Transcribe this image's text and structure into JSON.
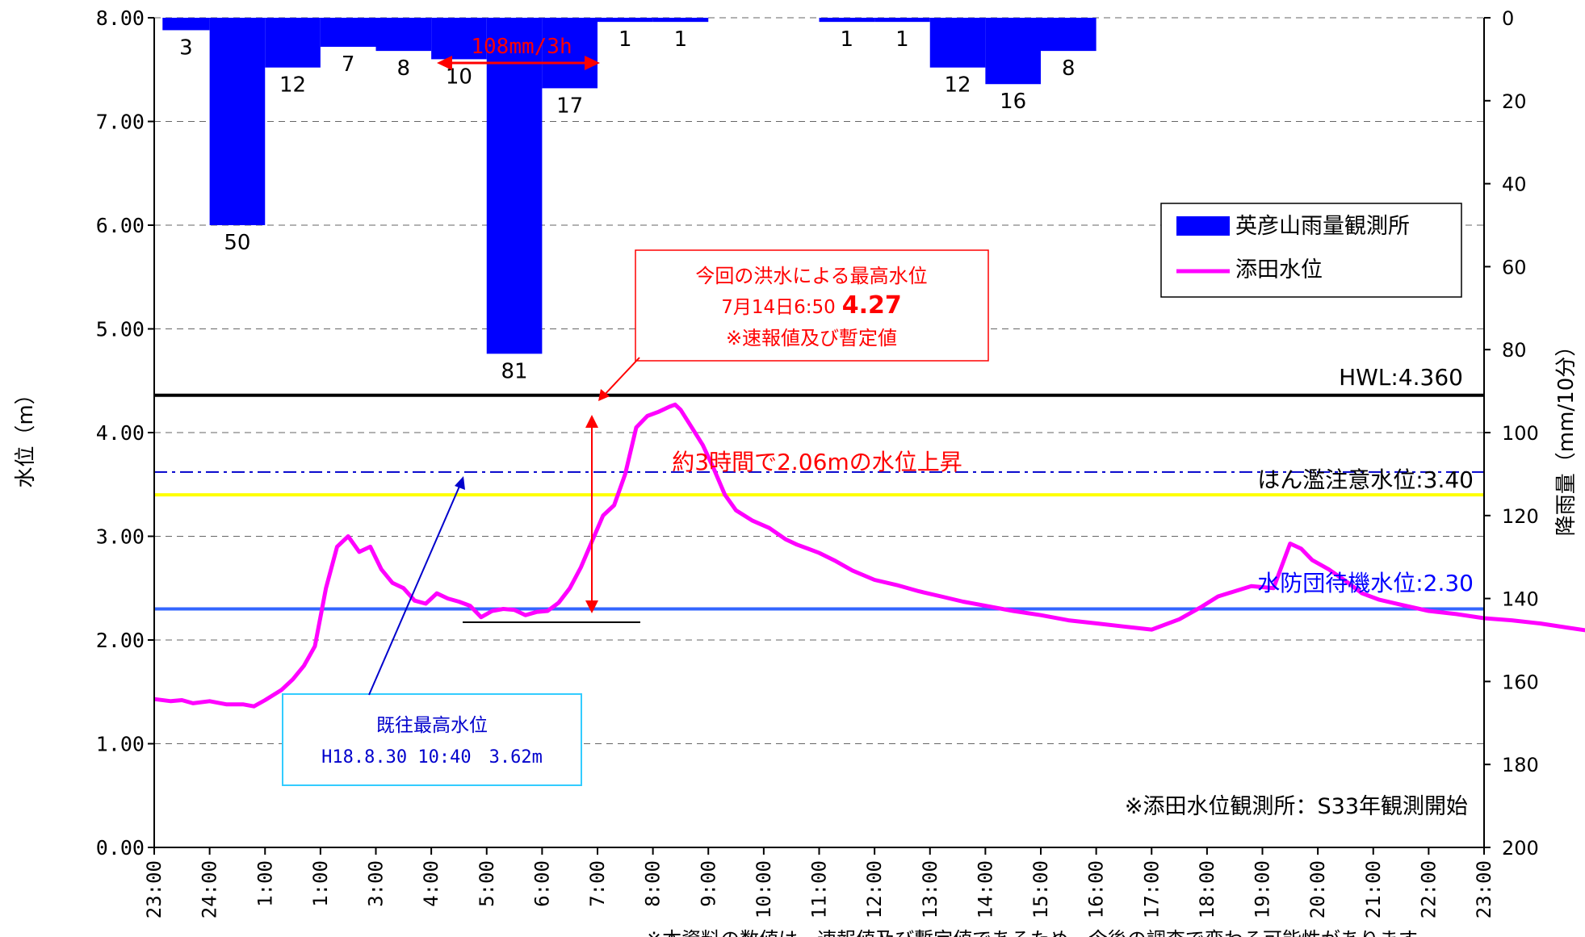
{
  "chart_data": {
    "type": "bar+line",
    "y_left": {
      "label": "水位（m）",
      "range": [
        0,
        8
      ],
      "ticks": [
        "0.00",
        "1.00",
        "2.00",
        "3.00",
        "4.00",
        "5.00",
        "6.00",
        "7.00",
        "8.00"
      ]
    },
    "y_right": {
      "label": "降雨量（mm/10分）",
      "range": [
        0,
        200
      ],
      "inverted": true,
      "ticks": [
        "0",
        "20",
        "40",
        "60",
        "80",
        "100",
        "120",
        "140",
        "160",
        "180",
        "200"
      ]
    },
    "x": {
      "range_hours": [
        0,
        24
      ],
      "tick_labels": [
        "23:00",
        "24:00",
        "1:00",
        "1:00",
        "3:00",
        "4:00",
        "5:00",
        "6:00",
        "7:00",
        "8:00",
        "9:00",
        "10:00",
        "11:00",
        "12:00",
        "13:00",
        "14:00",
        "15:00",
        "16:00",
        "17:00",
        "18:00",
        "19:00",
        "20:00",
        "21:00",
        "22:00",
        "23:00"
      ]
    },
    "rain_bars": {
      "name": "英彦山雨量観測所",
      "color": "#0000ff",
      "bars": [
        {
          "start": 0.15,
          "end": 1.0,
          "value": 3,
          "label": "3"
        },
        {
          "start": 1.0,
          "end": 2.0,
          "value": 50,
          "label": "50"
        },
        {
          "start": 2.0,
          "end": 3.0,
          "value": 12,
          "label": "12"
        },
        {
          "start": 3.0,
          "end": 4.0,
          "value": 7,
          "label": "7"
        },
        {
          "start": 4.0,
          "end": 5.0,
          "value": 8,
          "label": "8"
        },
        {
          "start": 5.0,
          "end": 6.0,
          "value": 10,
          "label": "10"
        },
        {
          "start": 6.0,
          "end": 7.0,
          "value": 81,
          "label": "81"
        },
        {
          "start": 7.0,
          "end": 8.0,
          "value": 17,
          "label": "17"
        },
        {
          "start": 8.0,
          "end": 9.0,
          "value": 1,
          "label": "1"
        },
        {
          "start": 9.0,
          "end": 10.0,
          "value": 1,
          "label": "1"
        },
        {
          "start": 12.0,
          "end": 13.0,
          "value": 1,
          "label": "1"
        },
        {
          "start": 13.0,
          "end": 14.0,
          "value": 1,
          "label": "1"
        },
        {
          "start": 14.0,
          "end": 15.0,
          "value": 12,
          "label": "12"
        },
        {
          "start": 15.0,
          "end": 16.0,
          "value": 16,
          "label": "16"
        },
        {
          "start": 16.0,
          "end": 17.0,
          "value": 8,
          "label": "8"
        }
      ]
    },
    "water_level": {
      "name": "添田水位",
      "color": "#ff00ff",
      "points": [
        [
          0,
          1.43
        ],
        [
          0.3,
          1.41
        ],
        [
          0.5,
          1.42
        ],
        [
          0.7,
          1.39
        ],
        [
          1.0,
          1.41
        ],
        [
          1.3,
          1.38
        ],
        [
          1.6,
          1.38
        ],
        [
          1.8,
          1.36
        ],
        [
          2.0,
          1.42
        ],
        [
          2.3,
          1.52
        ],
        [
          2.5,
          1.62
        ],
        [
          2.7,
          1.75
        ],
        [
          2.9,
          1.94
        ],
        [
          3.1,
          2.5
        ],
        [
          3.3,
          2.9
        ],
        [
          3.5,
          3.0
        ],
        [
          3.7,
          2.85
        ],
        [
          3.9,
          2.9
        ],
        [
          4.1,
          2.68
        ],
        [
          4.3,
          2.55
        ],
        [
          4.5,
          2.5
        ],
        [
          4.7,
          2.38
        ],
        [
          4.9,
          2.35
        ],
        [
          5.1,
          2.45
        ],
        [
          5.3,
          2.4
        ],
        [
          5.5,
          2.37
        ],
        [
          5.7,
          2.33
        ],
        [
          5.9,
          2.22
        ],
        [
          6.1,
          2.28
        ],
        [
          6.3,
          2.3
        ],
        [
          6.5,
          2.29
        ],
        [
          6.7,
          2.24
        ],
        [
          6.9,
          2.27
        ],
        [
          7.1,
          2.28
        ],
        [
          7.3,
          2.36
        ],
        [
          7.5,
          2.5
        ],
        [
          7.7,
          2.7
        ],
        [
          7.9,
          2.95
        ],
        [
          8.1,
          3.2
        ],
        [
          8.3,
          3.3
        ],
        [
          8.5,
          3.6
        ],
        [
          8.7,
          4.05
        ],
        [
          8.9,
          4.16
        ],
        [
          9.1,
          4.2
        ],
        [
          9.3,
          4.25
        ],
        [
          9.4,
          4.27
        ],
        [
          9.5,
          4.22
        ],
        [
          9.7,
          4.05
        ],
        [
          9.9,
          3.88
        ],
        [
          10.1,
          3.65
        ],
        [
          10.3,
          3.4
        ],
        [
          10.5,
          3.25
        ],
        [
          10.8,
          3.15
        ],
        [
          11.1,
          3.08
        ],
        [
          11.4,
          2.97
        ],
        [
          11.6,
          2.92
        ],
        [
          11.8,
          2.88
        ],
        [
          12.0,
          2.84
        ],
        [
          12.3,
          2.76
        ],
        [
          12.6,
          2.67
        ],
        [
          13.0,
          2.58
        ],
        [
          13.4,
          2.53
        ],
        [
          13.8,
          2.47
        ],
        [
          14.2,
          2.42
        ],
        [
          14.6,
          2.37
        ],
        [
          15.0,
          2.33
        ],
        [
          15.5,
          2.28
        ],
        [
          16.0,
          2.24
        ],
        [
          16.5,
          2.19
        ],
        [
          17.0,
          2.16
        ],
        [
          17.5,
          2.13
        ],
        [
          18.0,
          2.1
        ],
        [
          18.5,
          2.2
        ],
        [
          18.9,
          2.32
        ],
        [
          19.2,
          2.42
        ],
        [
          19.5,
          2.47
        ],
        [
          19.8,
          2.52
        ],
        [
          20.2,
          2.5
        ],
        [
          20.5,
          2.93
        ],
        [
          20.7,
          2.88
        ],
        [
          20.9,
          2.77
        ],
        [
          21.2,
          2.68
        ],
        [
          21.5,
          2.57
        ],
        [
          21.8,
          2.45
        ],
        [
          22.1,
          2.39
        ],
        [
          22.5,
          2.34
        ],
        [
          23.0,
          2.28
        ],
        [
          23.5,
          2.25
        ],
        [
          24.0,
          2.21
        ],
        [
          24.5,
          2.19
        ],
        [
          25.0,
          2.16
        ],
        [
          25.5,
          2.12
        ],
        [
          26.0,
          2.08
        ],
        [
          26.5,
          2.06
        ],
        [
          27.0,
          2.04
        ],
        [
          27.5,
          2.02
        ],
        [
          28.0,
          2.0
        ],
        [
          28.3,
          1.98
        ]
      ]
    },
    "reference_lines": [
      {
        "name": "HWL",
        "label": "HWL:4.360",
        "value": 4.36,
        "color": "#000000",
        "style": "solid"
      },
      {
        "name": "flood-warning",
        "label": "はん濫注意水位:3.40",
        "value": 3.4,
        "color": "#ffff00",
        "style": "solid"
      },
      {
        "name": "historic-max",
        "value": 3.62,
        "color": "#0000cc",
        "style": "dashdot"
      },
      {
        "name": "standby",
        "label": "水防団待機水位:2.30",
        "value": 2.3,
        "color": "#3366ff",
        "style": "solid"
      }
    ],
    "legend": {
      "position": "right",
      "entries": [
        "英彦山雨量観測所",
        "添田水位"
      ]
    },
    "grid": {
      "horizontal": true,
      "style": "dashed"
    }
  },
  "annotations": {
    "rain_total": "108mm/3h",
    "peak_box": {
      "line1": "今回の洪水による最高水位",
      "line2_prefix": "7月14日6:50",
      "line2_value": "4.27",
      "line3": "※速報値及び暫定値"
    },
    "rise_text": "約3時間で2.06mの水位上昇",
    "historic_box": {
      "line1": "既往最高水位",
      "line2": "H18.8.30 10:40　3.62m"
    },
    "station_note": "※添田水位観測所：S33年観測開始",
    "footnote": "※本資料の数値は、速報値及び暫定値であるため、今後の調査で変わる可能性があります"
  },
  "colors": {
    "bar": "#0000ff",
    "line": "#ff00ff",
    "annotation_red": "#ff0000",
    "historic_box_border": "#33ccff",
    "historic_text": "#0000cc"
  }
}
